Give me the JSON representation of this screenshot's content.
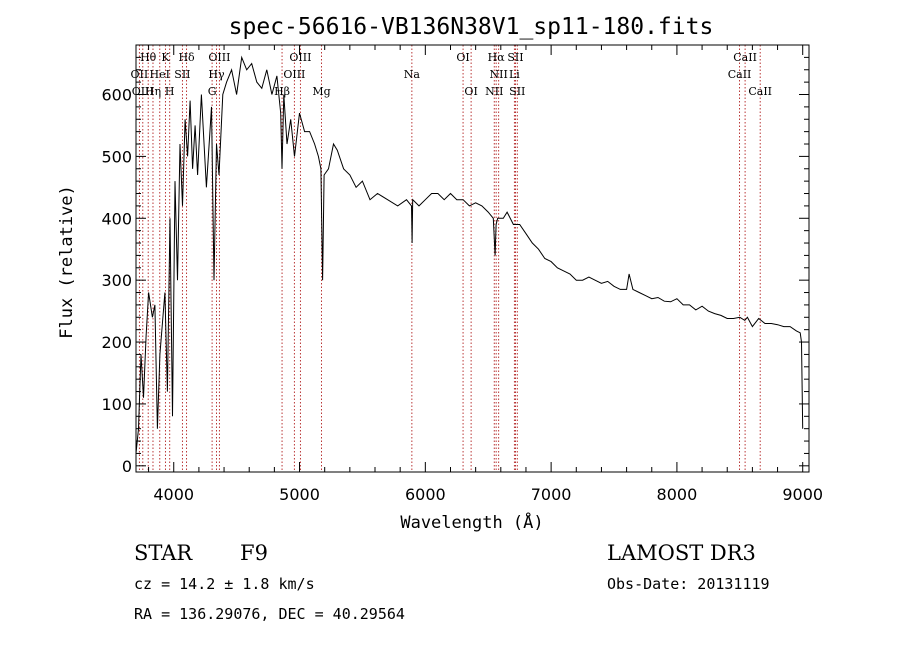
{
  "chart_data": {
    "type": "line",
    "title": "spec-56616-VB136N38V1_sp11-180.fits",
    "xlabel": "Wavelength (Å)",
    "ylabel": "Flux (relative)",
    "xlim": [
      3700,
      9050
    ],
    "ylim": [
      -10,
      680
    ],
    "grid": false,
    "xticks": [
      4000,
      5000,
      6000,
      7000,
      8000,
      9000
    ],
    "yticks": [
      0,
      100,
      200,
      300,
      400,
      500,
      600
    ],
    "series": [
      {
        "name": "flux",
        "x": [
          3700,
          3720,
          3740,
          3760,
          3780,
          3800,
          3830,
          3850,
          3870,
          3890,
          3910,
          3930,
          3950,
          3970,
          3990,
          4010,
          4030,
          4050,
          4070,
          4090,
          4110,
          4130,
          4150,
          4170,
          4190,
          4220,
          4260,
          4300,
          4320,
          4340,
          4360,
          4390,
          4420,
          4460,
          4500,
          4540,
          4580,
          4620,
          4660,
          4700,
          4740,
          4780,
          4820,
          4850,
          4861,
          4875,
          4900,
          4930,
          4960,
          5000,
          5040,
          5080,
          5120,
          5150,
          5170,
          5183,
          5195,
          5230,
          5270,
          5300,
          5350,
          5400,
          5450,
          5500,
          5560,
          5620,
          5700,
          5780,
          5850,
          5890,
          5895,
          5900,
          5950,
          6000,
          6050,
          6100,
          6150,
          6200,
          6250,
          6300,
          6350,
          6400,
          6450,
          6500,
          6540,
          6555,
          6563,
          6575,
          6620,
          6650,
          6700,
          6750,
          6800,
          6850,
          6900,
          6950,
          7000,
          7050,
          7100,
          7150,
          7200,
          7250,
          7300,
          7350,
          7400,
          7450,
          7500,
          7550,
          7600,
          7620,
          7650,
          7700,
          7750,
          7800,
          7850,
          7900,
          7950,
          8000,
          8050,
          8100,
          8150,
          8200,
          8250,
          8300,
          8350,
          8400,
          8450,
          8500,
          8540,
          8560,
          8600,
          8650,
          8700,
          8750,
          8800,
          8850,
          8900,
          8950,
          8980,
          8990,
          9000
        ],
        "values": [
          20,
          60,
          180,
          110,
          210,
          280,
          240,
          260,
          60,
          180,
          230,
          280,
          120,
          400,
          80,
          460,
          300,
          520,
          420,
          560,
          500,
          590,
          480,
          550,
          470,
          600,
          450,
          580,
          300,
          520,
          470,
          600,
          620,
          640,
          600,
          660,
          640,
          650,
          620,
          610,
          640,
          600,
          630,
          570,
          480,
          600,
          520,
          560,
          500,
          570,
          540,
          540,
          520,
          500,
          480,
          300,
          470,
          480,
          520,
          510,
          480,
          470,
          450,
          460,
          430,
          440,
          430,
          420,
          430,
          420,
          360,
          430,
          420,
          430,
          440,
          440,
          430,
          440,
          430,
          430,
          420,
          425,
          420,
          410,
          400,
          340,
          390,
          400,
          400,
          410,
          390,
          390,
          375,
          360,
          350,
          335,
          330,
          320,
          315,
          310,
          300,
          300,
          305,
          300,
          295,
          298,
          290,
          285,
          285,
          310,
          285,
          280,
          275,
          270,
          272,
          266,
          265,
          270,
          260,
          260,
          252,
          258,
          250,
          246,
          243,
          238,
          238,
          240,
          235,
          240,
          225,
          238,
          230,
          230,
          228,
          225,
          225,
          218,
          215,
          200,
          60
        ]
      }
    ],
    "spectral_lines": [
      {
        "name": "Hθ",
        "wavelength": 3797,
        "row": 1
      },
      {
        "name": "K",
        "wavelength": 3934,
        "row": 1
      },
      {
        "name": "Hδ",
        "wavelength": 4102,
        "row": 1
      },
      {
        "name": "OIII",
        "wavelength": 4363,
        "row": 1
      },
      {
        "name": "OIII",
        "wavelength": 5007,
        "row": 1
      },
      {
        "name": "OI",
        "wavelength": 6300,
        "row": 1
      },
      {
        "name": "Hα",
        "wavelength": 6563,
        "row": 1
      },
      {
        "name": "SII",
        "wavelength": 6717,
        "row": 1
      },
      {
        "name": "CaII",
        "wavelength": 8542,
        "row": 1
      },
      {
        "name": "OII",
        "wavelength": 3727,
        "row": 2
      },
      {
        "name": "HeI",
        "wavelength": 3889,
        "row": 2
      },
      {
        "name": "SII",
        "wavelength": 4069,
        "row": 2
      },
      {
        "name": "Hγ",
        "wavelength": 4340,
        "row": 2
      },
      {
        "name": "OIII",
        "wavelength": 4959,
        "row": 2
      },
      {
        "name": "Na",
        "wavelength": 5893,
        "row": 2
      },
      {
        "name": "NII",
        "wavelength": 6583,
        "row": 2
      },
      {
        "name": "Li",
        "wavelength": 6708,
        "row": 2
      },
      {
        "name": "CaII",
        "wavelength": 8498,
        "row": 2
      },
      {
        "name": "OIII",
        "wavelength": 3754,
        "row": 3
      },
      {
        "name": "Hη",
        "wavelength": 3835,
        "row": 3
      },
      {
        "name": "H",
        "wavelength": 3968,
        "row": 3
      },
      {
        "name": "G",
        "wavelength": 4305,
        "row": 3
      },
      {
        "name": "Hβ",
        "wavelength": 4861,
        "row": 3
      },
      {
        "name": "Mg",
        "wavelength": 5175,
        "row": 3
      },
      {
        "name": "OI",
        "wavelength": 6364,
        "row": 3
      },
      {
        "name": "NII",
        "wavelength": 6548,
        "row": 3
      },
      {
        "name": "SII",
        "wavelength": 6731,
        "row": 3
      },
      {
        "name": "CaII",
        "wavelength": 8662,
        "row": 3
      }
    ]
  },
  "info": {
    "class": "STAR",
    "subclass": "F9",
    "survey": "LAMOST DR3",
    "cz": "cz = 14.2 ± 1.8 km/s",
    "obs_date": "Obs-Date: 20131119",
    "coords": "RA = 136.29076, DEC =  40.29564"
  },
  "colors": {
    "line_marker": "#b22222",
    "spectrum": "#000000",
    "axis": "#000000"
  }
}
